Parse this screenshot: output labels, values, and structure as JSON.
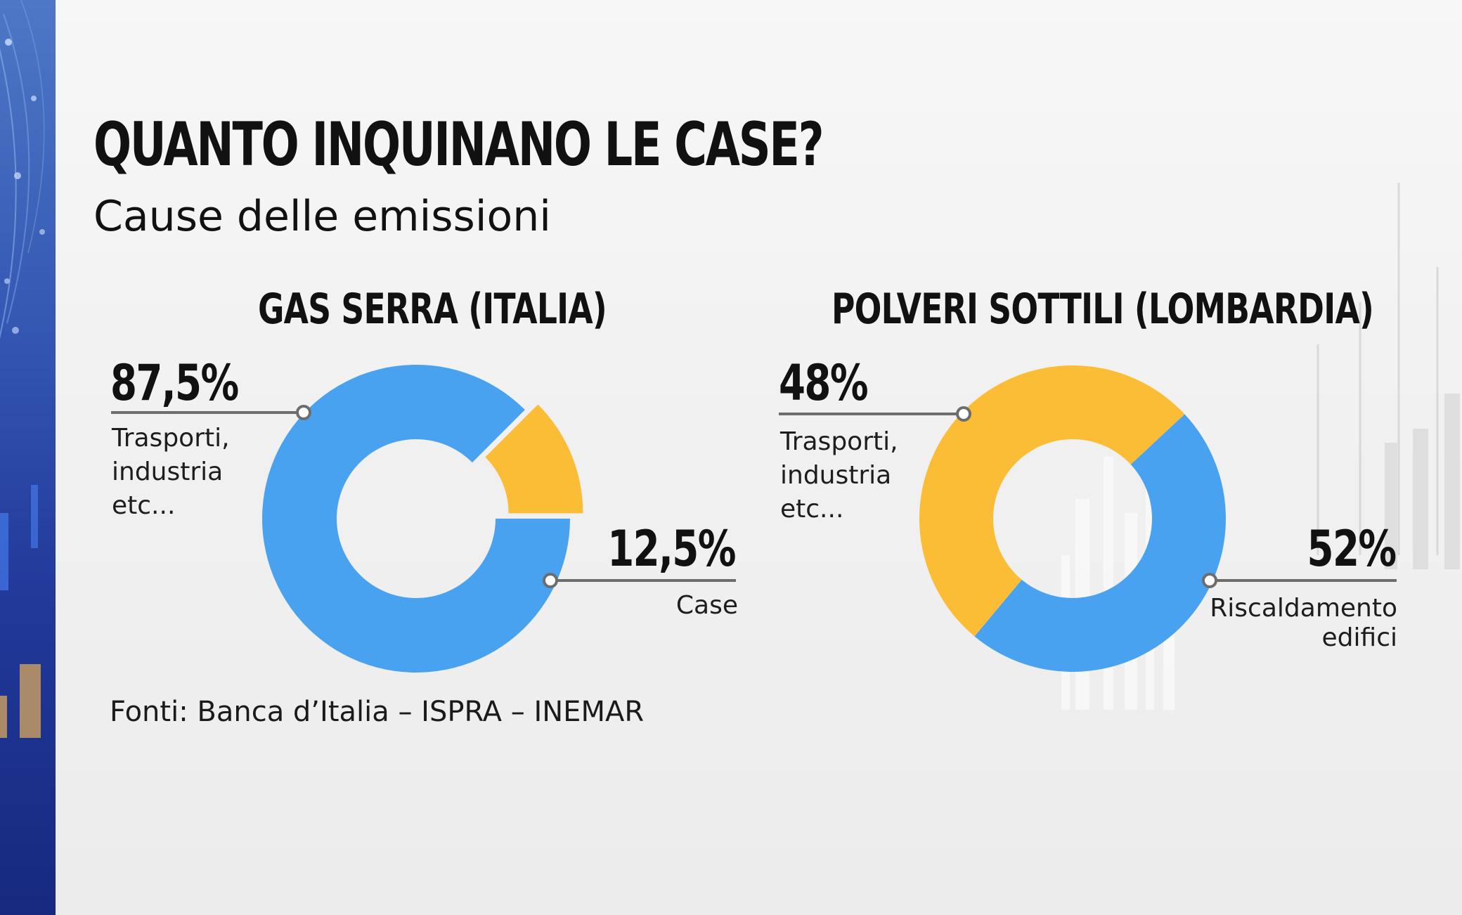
{
  "title": "QUANTO INQUINANO LE CASE?",
  "subtitle": "Cause delle emissioni",
  "source": "Fonti:  Banca d’Italia – ISPRA – INEMAR",
  "colors": {
    "blue": "#48a2f0",
    "yellow": "#fbbd35",
    "connector": "#6d6d6d",
    "band": "#2a45a5"
  },
  "chart_data": [
    {
      "type": "pie",
      "title": "GAS SERRA (ITALIA)",
      "categories": [
        "Trasporti, industria etc...",
        "Case"
      ],
      "values": [
        87.5,
        12.5
      ],
      "value_labels": [
        "87,5%",
        "12,5%"
      ],
      "colors": [
        "#48a2f0",
        "#fbbd35"
      ],
      "label_lines": [
        [
          "Trasporti,",
          "industria",
          "etc..."
        ],
        [
          "Case"
        ]
      ],
      "style": "donut, smaller slice exploded"
    },
    {
      "type": "pie",
      "title": "POLVERI SOTTILI (LOMBARDIA)",
      "categories": [
        "Trasporti, industria etc...",
        "Riscaldamento edifici"
      ],
      "values": [
        48,
        52
      ],
      "value_labels": [
        "48%",
        "52%"
      ],
      "colors": [
        "#48a2f0",
        "#fbbd35"
      ],
      "label_lines": [
        [
          "Trasporti,",
          "industria",
          "etc..."
        ],
        [
          "Riscaldamento",
          "edifici"
        ]
      ],
      "style": "donut"
    }
  ]
}
